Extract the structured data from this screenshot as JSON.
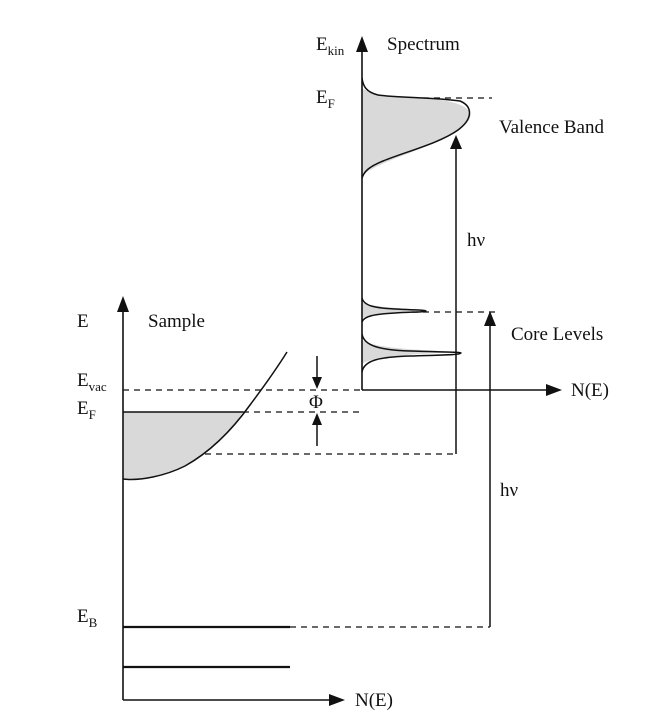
{
  "labels": {
    "e_kin_main": "E",
    "e_kin_sub": "kin",
    "spectrum": "Spectrum",
    "ef_top_main": "E",
    "ef_top_sub": "F",
    "valence_band": "Valence Band",
    "hv_top": "hν",
    "core_levels": "Core Levels",
    "n_e_top": "N(E)",
    "e_sample": "E",
    "sample": "Sample",
    "evac_main": "E",
    "evac_sub": "vac",
    "ef_sample_main": "E",
    "ef_sample_sub": "F",
    "phi": "Φ",
    "hv_bottom": "hν",
    "eb_main": "E",
    "eb_sub": "B",
    "n_e_bottom": "N(E)"
  }
}
